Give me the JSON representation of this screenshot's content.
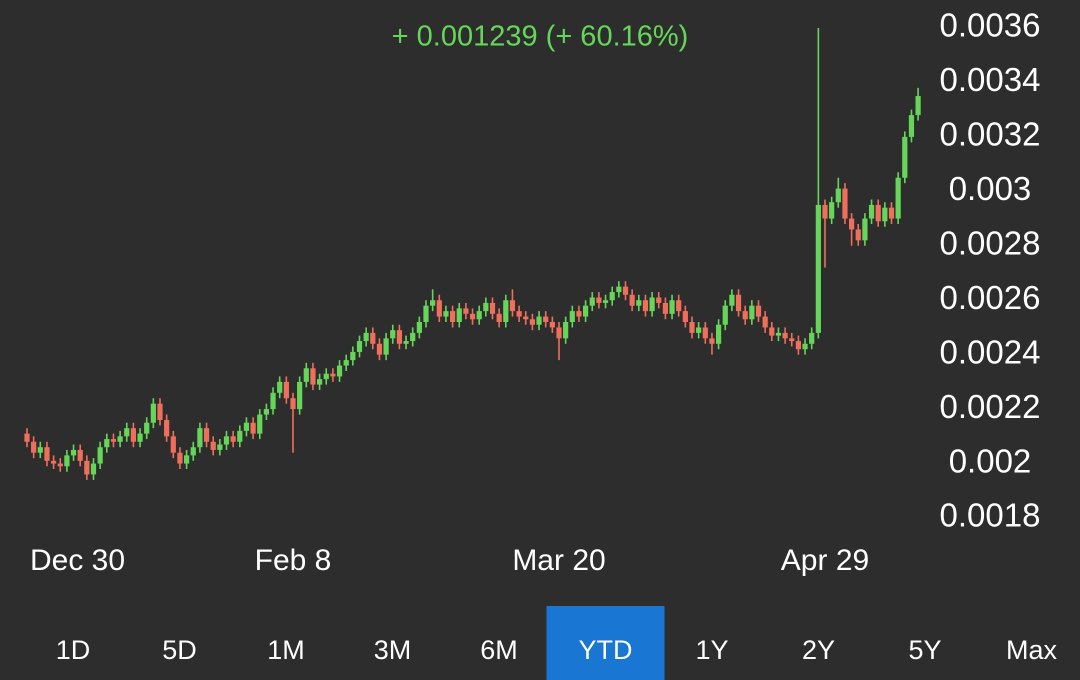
{
  "chart_data": {
    "type": "candlestick",
    "change_label": "+ 0.001239 (+ 60.16%)",
    "up_color": "#66d65a",
    "down_color": "#ef6f5c",
    "categories": [
      "Dec 30",
      null,
      null,
      null,
      null,
      null,
      null,
      null,
      null,
      null,
      null,
      null,
      null,
      null,
      null,
      null,
      null,
      null,
      null,
      null,
      null,
      null,
      null,
      null,
      null,
      null,
      null,
      null,
      null,
      null,
      null,
      null,
      null,
      null,
      null,
      null,
      null,
      null,
      null,
      null,
      "Feb 8",
      null,
      null,
      null,
      null,
      null,
      null,
      null,
      null,
      null,
      null,
      null,
      null,
      null,
      null,
      null,
      null,
      null,
      null,
      null,
      null,
      null,
      null,
      null,
      null,
      null,
      null,
      null,
      null,
      null,
      null,
      null,
      null,
      null,
      null,
      null,
      null,
      null,
      null,
      null,
      "Mar 20",
      null,
      null,
      null,
      null,
      null,
      null,
      null,
      null,
      null,
      null,
      null,
      null,
      null,
      null,
      null,
      null,
      null,
      null,
      null,
      null,
      null,
      null,
      null,
      null,
      null,
      null,
      null,
      null,
      null,
      null,
      null,
      null,
      null,
      null,
      null,
      null,
      null,
      null,
      null,
      "Apr 29",
      null,
      null,
      null,
      null,
      null,
      null,
      null,
      null,
      null,
      null,
      null,
      null,
      null,
      null
    ],
    "open": [
      0.00211,
      0.00208,
      0.00204,
      0.00206,
      0.00201,
      0.002,
      0.00199,
      0.00203,
      0.00205,
      0.00201,
      0.00196,
      0.002,
      0.00206,
      0.00209,
      0.00208,
      0.0021,
      0.00213,
      0.00208,
      0.00211,
      0.00215,
      0.00222,
      0.00216,
      0.0021,
      0.00204,
      0.002,
      0.00203,
      0.00206,
      0.00213,
      0.00208,
      0.00205,
      0.00207,
      0.0021,
      0.00208,
      0.00212,
      0.00215,
      0.00211,
      0.00218,
      0.0022,
      0.00226,
      0.0023,
      0.00224,
      0.0022,
      0.0023,
      0.00235,
      0.00229,
      0.00231,
      0.00233,
      0.00232,
      0.00236,
      0.00238,
      0.00241,
      0.00245,
      0.00248,
      0.00244,
      0.0024,
      0.00246,
      0.00249,
      0.00244,
      0.00245,
      0.00248,
      0.00252,
      0.00258,
      0.0026,
      0.00254,
      0.00256,
      0.00252,
      0.00257,
      0.00255,
      0.00253,
      0.00256,
      0.00259,
      0.00255,
      0.00252,
      0.0026,
      0.00256,
      0.00254,
      0.00253,
      0.00251,
      0.00254,
      0.00252,
      0.0025,
      0.00246,
      0.00252,
      0.00256,
      0.00254,
      0.00258,
      0.00261,
      0.00259,
      0.0026,
      0.00263,
      0.00265,
      0.00262,
      0.00258,
      0.0026,
      0.00256,
      0.00261,
      0.00259,
      0.00255,
      0.0026,
      0.00256,
      0.00252,
      0.00248,
      0.0025,
      0.00246,
      0.00244,
      0.00251,
      0.00258,
      0.00262,
      0.00256,
      0.00253,
      0.00258,
      0.00254,
      0.0025,
      0.00247,
      0.00248,
      0.00246,
      0.00245,
      0.00242,
      0.00244,
      0.00248,
      0.00295,
      0.0029,
      0.00296,
      0.00301,
      0.0029,
      0.00286,
      0.00282,
      0.0029,
      0.00295,
      0.00289,
      0.00294,
      0.0029,
      0.00305,
      0.0032,
      0.00328
    ],
    "high": [
      0.00213,
      0.0021,
      0.00208,
      0.00208,
      0.00203,
      0.00202,
      0.00205,
      0.00207,
      0.00207,
      0.00203,
      0.00202,
      0.00208,
      0.00211,
      0.00211,
      0.00212,
      0.00215,
      0.00215,
      0.00213,
      0.00217,
      0.00224,
      0.00224,
      0.00218,
      0.00212,
      0.00206,
      0.00205,
      0.00208,
      0.00215,
      0.00215,
      0.0021,
      0.00209,
      0.00212,
      0.00212,
      0.00214,
      0.00217,
      0.00217,
      0.0022,
      0.00222,
      0.00228,
      0.00232,
      0.00232,
      0.00226,
      0.00232,
      0.00237,
      0.00237,
      0.00233,
      0.00235,
      0.00235,
      0.00238,
      0.0024,
      0.00243,
      0.00247,
      0.0025,
      0.0025,
      0.00246,
      0.00248,
      0.00251,
      0.00251,
      0.00247,
      0.0025,
      0.00254,
      0.0026,
      0.00264,
      0.00262,
      0.00258,
      0.00258,
      0.00259,
      0.00259,
      0.00257,
      0.00258,
      0.00261,
      0.00261,
      0.00257,
      0.00262,
      0.00264,
      0.00258,
      0.00256,
      0.00255,
      0.00256,
      0.00256,
      0.00254,
      0.00252,
      0.00254,
      0.00258,
      0.00258,
      0.0026,
      0.00263,
      0.00263,
      0.00262,
      0.00265,
      0.00267,
      0.00267,
      0.00264,
      0.00262,
      0.00262,
      0.00263,
      0.00263,
      0.00261,
      0.00262,
      0.00262,
      0.00258,
      0.00254,
      0.00252,
      0.00252,
      0.00248,
      0.00253,
      0.0026,
      0.00264,
      0.00264,
      0.00258,
      0.0026,
      0.0026,
      0.00256,
      0.00252,
      0.0025,
      0.0025,
      0.00248,
      0.00247,
      0.00246,
      0.0025,
      0.0036,
      0.00297,
      0.00298,
      0.00305,
      0.00303,
      0.00292,
      0.00288,
      0.00292,
      0.00297,
      0.00297,
      0.00296,
      0.00296,
      0.00307,
      0.00322,
      0.0033,
      0.00338
    ],
    "low": [
      0.00206,
      0.00202,
      0.00202,
      0.00199,
      0.00198,
      0.00197,
      0.00197,
      0.00201,
      0.00199,
      0.00194,
      0.00194,
      0.00198,
      0.00204,
      0.00206,
      0.00206,
      0.00208,
      0.00206,
      0.00206,
      0.00209,
      0.00213,
      0.00214,
      0.00208,
      0.00202,
      0.00198,
      0.00198,
      0.00201,
      0.00204,
      0.00206,
      0.00203,
      0.00203,
      0.00205,
      0.00206,
      0.00206,
      0.0021,
      0.00209,
      0.00209,
      0.00216,
      0.00218,
      0.00224,
      0.00222,
      0.00204,
      0.00218,
      0.00228,
      0.00227,
      0.00227,
      0.00229,
      0.0023,
      0.0023,
      0.00234,
      0.00236,
      0.00239,
      0.00243,
      0.00242,
      0.00238,
      0.00238,
      0.00244,
      0.00242,
      0.00242,
      0.00243,
      0.00246,
      0.0025,
      0.00256,
      0.00252,
      0.00252,
      0.0025,
      0.0025,
      0.00253,
      0.00251,
      0.00251,
      0.00254,
      0.00253,
      0.0025,
      0.0025,
      0.00254,
      0.00252,
      0.00251,
      0.00249,
      0.00249,
      0.0025,
      0.00248,
      0.00238,
      0.00244,
      0.0025,
      0.00252,
      0.00252,
      0.00256,
      0.00257,
      0.00257,
      0.00258,
      0.00261,
      0.0026,
      0.00256,
      0.00256,
      0.00254,
      0.00254,
      0.00257,
      0.00253,
      0.00253,
      0.00254,
      0.0025,
      0.00246,
      0.00246,
      0.00244,
      0.0024,
      0.00242,
      0.00249,
      0.00256,
      0.00254,
      0.00251,
      0.00251,
      0.00252,
      0.00248,
      0.00245,
      0.00245,
      0.00244,
      0.00243,
      0.0024,
      0.0024,
      0.00242,
      0.00246,
      0.00272,
      0.00288,
      0.00294,
      0.00288,
      0.0028,
      0.0028,
      0.0028,
      0.00288,
      0.00287,
      0.00287,
      0.00288,
      0.00288,
      0.00303,
      0.00318,
      0.00326
    ],
    "close": [
      0.00208,
      0.00204,
      0.00206,
      0.00201,
      0.002,
      0.00199,
      0.00203,
      0.00205,
      0.00201,
      0.00196,
      0.002,
      0.00206,
      0.00209,
      0.00208,
      0.0021,
      0.00213,
      0.00208,
      0.00211,
      0.00215,
      0.00222,
      0.00216,
      0.0021,
      0.00204,
      0.002,
      0.00203,
      0.00206,
      0.00213,
      0.00208,
      0.00205,
      0.00207,
      0.0021,
      0.00208,
      0.00212,
      0.00215,
      0.00211,
      0.00218,
      0.0022,
      0.00226,
      0.0023,
      0.00224,
      0.0022,
      0.0023,
      0.00235,
      0.00229,
      0.00231,
      0.00233,
      0.00232,
      0.00236,
      0.00238,
      0.00241,
      0.00245,
      0.00248,
      0.00244,
      0.0024,
      0.00246,
      0.00249,
      0.00244,
      0.00245,
      0.00248,
      0.00252,
      0.00258,
      0.0026,
      0.00254,
      0.00256,
      0.00252,
      0.00257,
      0.00255,
      0.00253,
      0.00256,
      0.00259,
      0.00255,
      0.00252,
      0.0026,
      0.00256,
      0.00254,
      0.00253,
      0.00251,
      0.00254,
      0.00252,
      0.0025,
      0.00246,
      0.00252,
      0.00256,
      0.00254,
      0.00258,
      0.00261,
      0.00259,
      0.0026,
      0.00263,
      0.00265,
      0.00262,
      0.00258,
      0.0026,
      0.00256,
      0.00261,
      0.00259,
      0.00255,
      0.0026,
      0.00256,
      0.00252,
      0.00248,
      0.0025,
      0.00246,
      0.00244,
      0.00251,
      0.00258,
      0.00262,
      0.00256,
      0.00253,
      0.00258,
      0.00254,
      0.0025,
      0.00247,
      0.00248,
      0.00246,
      0.00245,
      0.00242,
      0.00244,
      0.00248,
      0.00295,
      0.0029,
      0.00296,
      0.00301,
      0.0029,
      0.00286,
      0.00282,
      0.0029,
      0.00295,
      0.00289,
      0.00294,
      0.0029,
      0.00305,
      0.0032,
      0.00328,
      0.00335
    ],
    "ylim": [
      0.0018,
      0.0036
    ],
    "yticks": [
      0.0018,
      0.002,
      0.0022,
      0.0024,
      0.0026,
      0.0028,
      0.003,
      0.0032,
      0.0034,
      0.0036
    ]
  },
  "tabs": [
    {
      "label": "1D"
    },
    {
      "label": "5D"
    },
    {
      "label": "1M"
    },
    {
      "label": "3M"
    },
    {
      "label": "6M"
    },
    {
      "label": "YTD",
      "selected": true
    },
    {
      "label": "1Y"
    },
    {
      "label": "2Y"
    },
    {
      "label": "5Y"
    },
    {
      "label": "Max"
    }
  ]
}
